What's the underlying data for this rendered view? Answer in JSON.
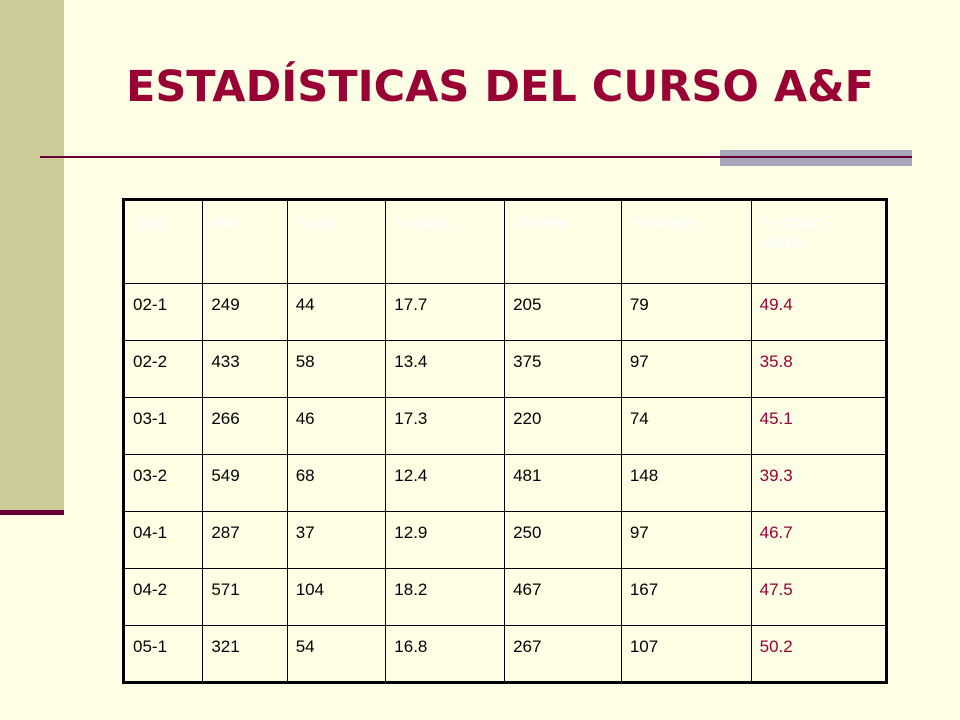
{
  "slide": {
    "title": "ESTADÍSTICAS DEL CURSO A&F"
  },
  "table": {
    "headers": [
      "SEM",
      "INIC.",
      "CANC.",
      "% CANC.",
      "TERMIN",
      "PIERDEN",
      "% (CANC + PÉRD)"
    ],
    "rows": [
      [
        "02-1",
        "249",
        "44",
        "17.7",
        "205",
        "79",
        "49.4"
      ],
      [
        "02-2",
        "433",
        "58",
        "13.4",
        "375",
        "97",
        "35.8"
      ],
      [
        "03-1",
        "266",
        "46",
        "17.3",
        "220",
        "74",
        "45.1"
      ],
      [
        "03-2",
        "549",
        "68",
        "12.4",
        "481",
        "148",
        "39.3"
      ],
      [
        "04-1",
        "287",
        "37",
        "12.9",
        "250",
        "97",
        "46.7"
      ],
      [
        "04-2",
        "571",
        "104",
        "18.2",
        "467",
        "167",
        "47.5"
      ],
      [
        "05-1",
        "321",
        "54",
        "16.8",
        "267",
        "107",
        "50.2"
      ]
    ]
  },
  "colors": {
    "background": "#FFFFE6",
    "side_bar": "#CCCC99",
    "title": "#990033",
    "rule": "#660033",
    "rule_accent": "#A6A6B8",
    "header_text": "#FFFFFF",
    "highlight_column_text": "#990033"
  }
}
